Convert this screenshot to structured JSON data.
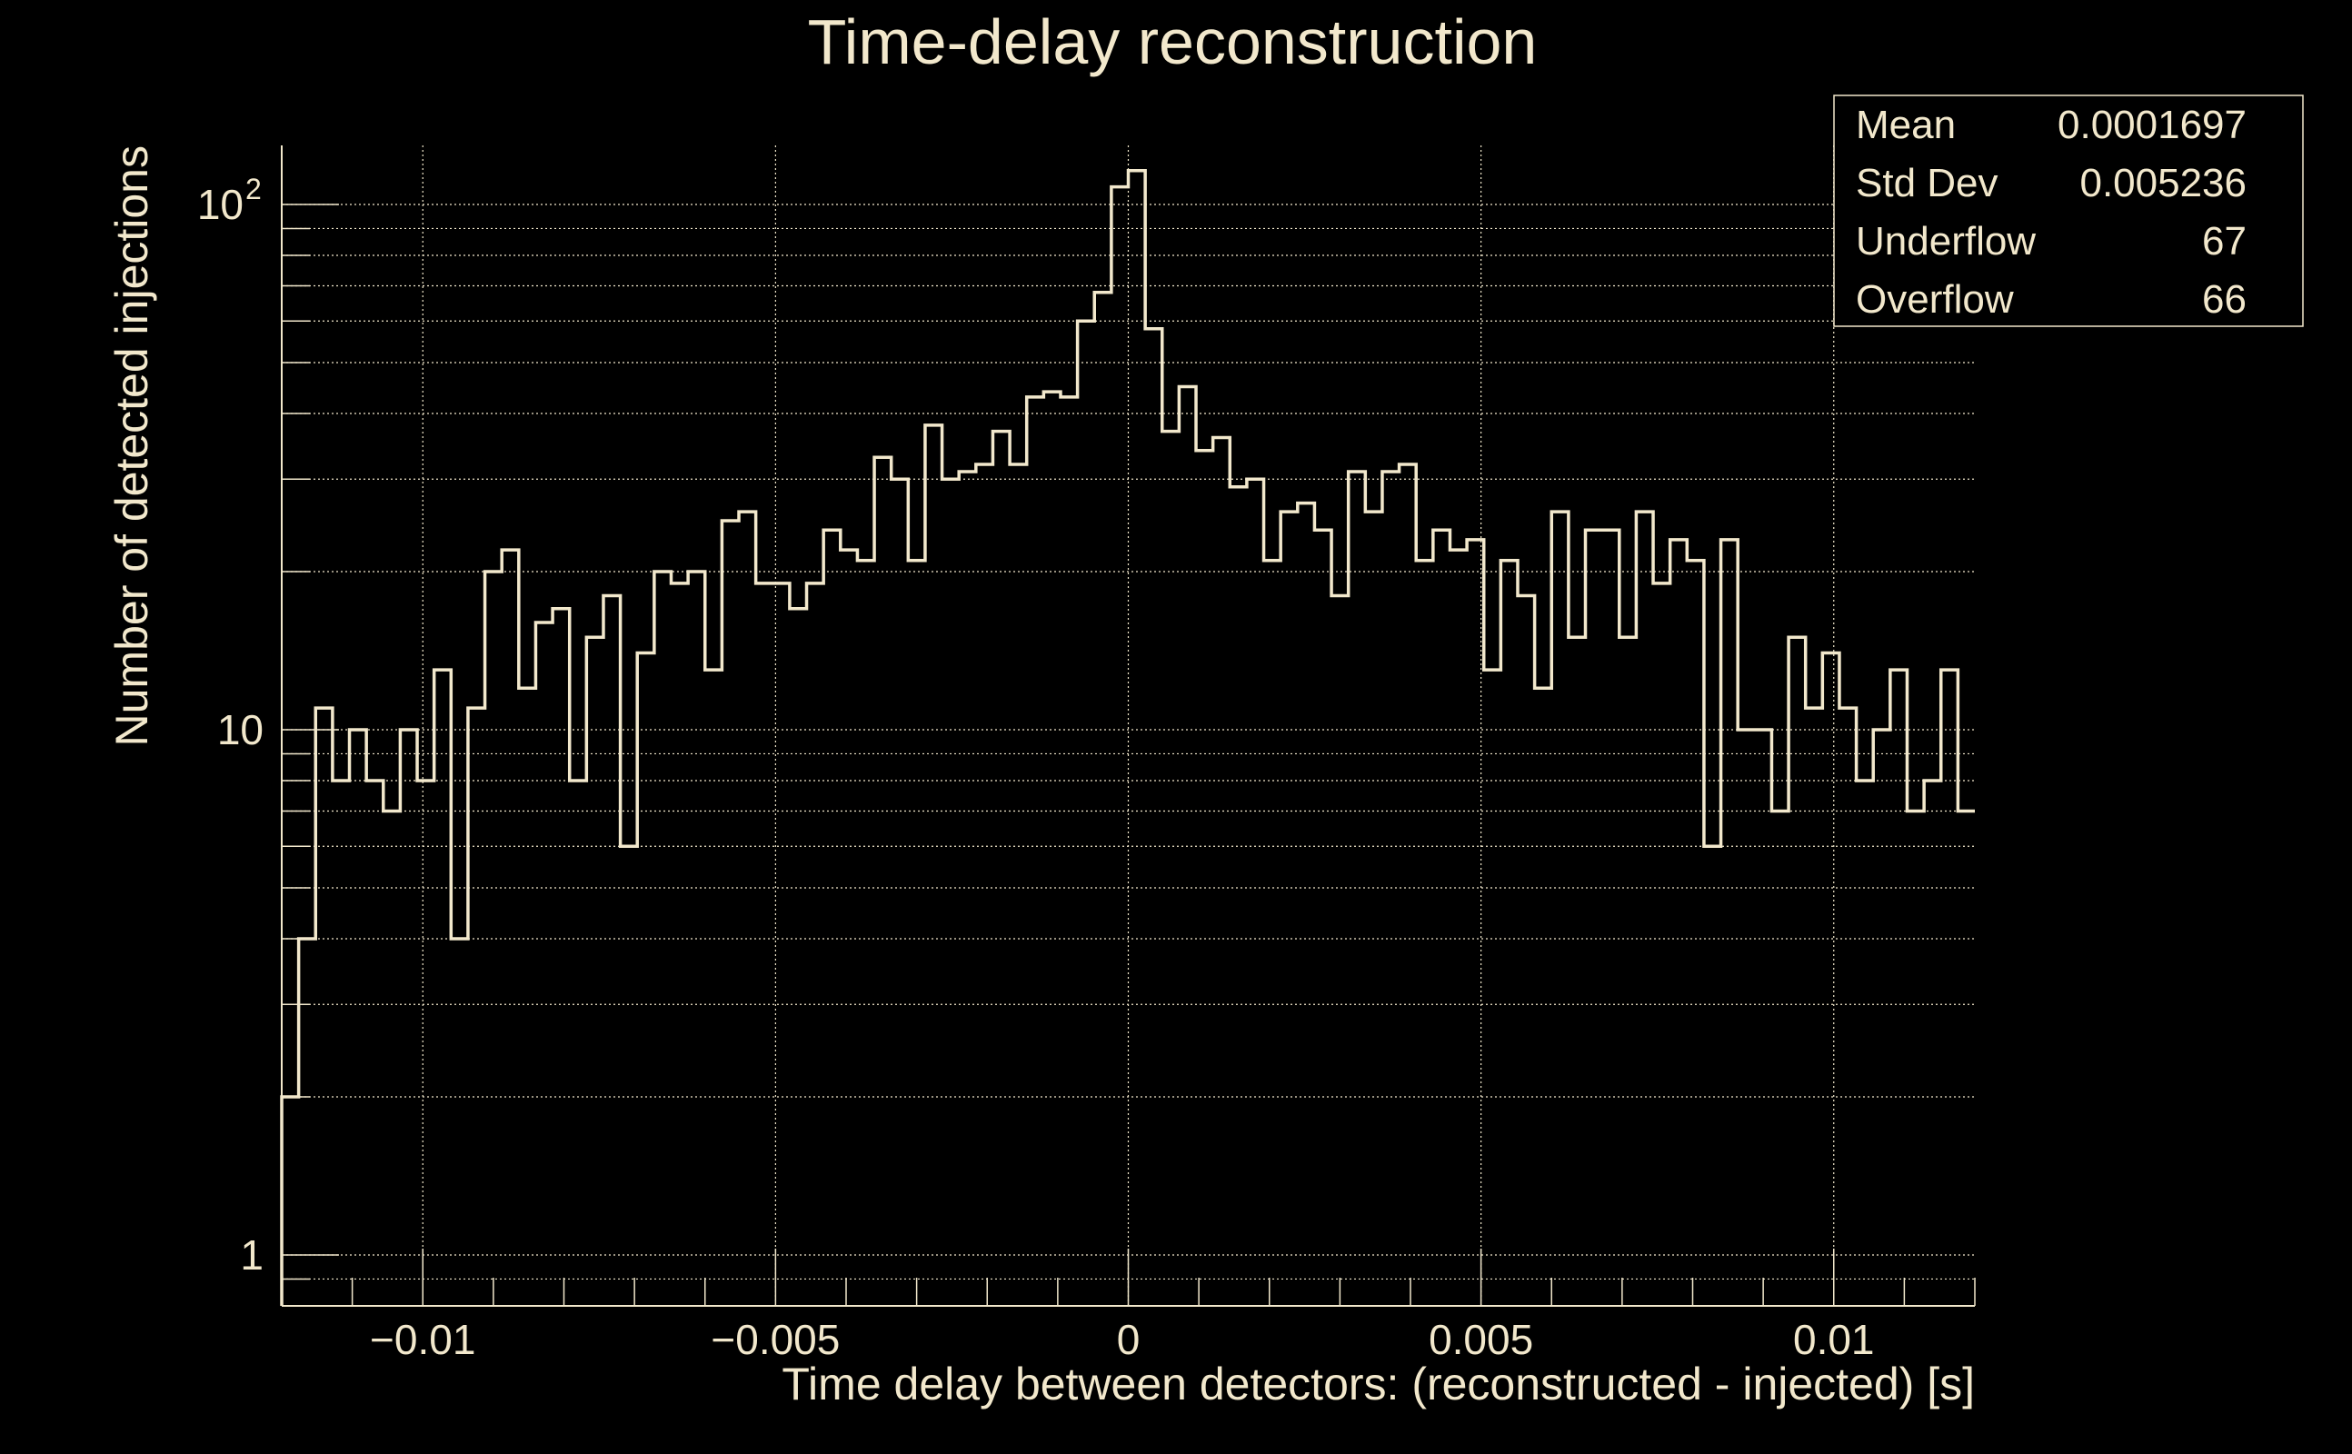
{
  "chart_data": {
    "type": "bar",
    "histogram_style": "step",
    "title": "Time-delay reconstruction",
    "xlabel": "Time delay between detectors: (reconstructed - injected) [s]",
    "ylabel": "Number of detected injections",
    "xlim": [
      -0.012,
      0.012
    ],
    "ylim": [
      0.8,
      130
    ],
    "yscale": "log",
    "grid": true,
    "bins": 100,
    "x_ticks": [
      {
        "value": -0.01,
        "label": "−0.01"
      },
      {
        "value": -0.005,
        "label": "−0.005"
      },
      {
        "value": 0,
        "label": "0"
      },
      {
        "value": 0.005,
        "label": "0.005"
      },
      {
        "value": 0.01,
        "label": "0.01"
      }
    ],
    "y_ticks": [
      {
        "value": 1,
        "label": "1",
        "exp": ""
      },
      {
        "value": 10,
        "label": "10",
        "exp": ""
      },
      {
        "value": 100,
        "label": "10",
        "exp": "2"
      }
    ],
    "values": [
      2,
      4,
      11,
      8,
      10,
      8,
      7,
      10,
      8,
      13,
      4,
      11,
      20,
      22,
      12,
      16,
      17,
      8,
      15,
      18,
      6,
      14,
      20,
      19,
      20,
      13,
      25,
      26,
      19,
      19,
      17,
      19,
      24,
      22,
      21,
      33,
      30,
      21,
      38,
      30,
      31,
      32,
      37,
      32,
      43,
      44,
      43,
      60,
      68,
      108,
      116,
      58,
      37,
      45,
      34,
      36,
      29,
      30,
      21,
      26,
      27,
      24,
      18,
      31,
      26,
      31,
      32,
      21,
      24,
      22,
      23,
      13,
      21,
      18,
      12,
      26,
      15,
      24,
      24,
      15,
      26,
      19,
      23,
      21,
      6,
      23,
      10,
      10,
      7,
      15,
      11,
      14,
      11,
      8,
      10,
      13,
      7,
      8,
      13,
      7
    ],
    "stats": [
      {
        "label": "Mean",
        "value": "0.0001697"
      },
      {
        "label": "Std Dev",
        "value": "0.005236"
      },
      {
        "label": "Underflow",
        "value": "67"
      },
      {
        "label": "Overflow",
        "value": "66"
      }
    ],
    "colors": {
      "foreground": "#f2e8cc",
      "background": "#000000"
    }
  }
}
